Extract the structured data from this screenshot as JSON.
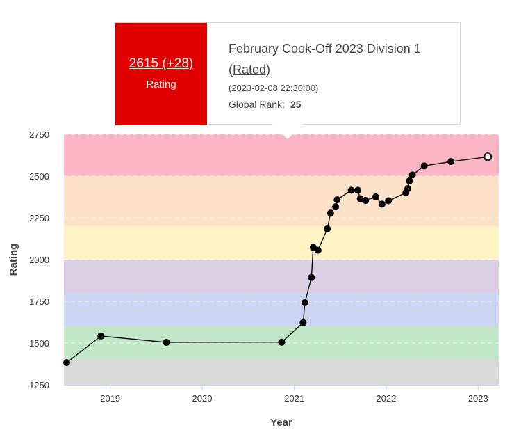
{
  "tooltip": {
    "rating_value": "2615 (+28)",
    "rating_label": "Rating",
    "contest_name": "February Cook-Off 2023 Division 1 (Rated)",
    "contest_date": "(2023-02-08 22:30:00)",
    "rank_label": "Global Rank:",
    "rank_value": "25"
  },
  "chart_data": {
    "type": "line",
    "xlabel": "Year",
    "ylabel": "Rating",
    "ylim": [
      1250,
      2750
    ],
    "xlim": [
      "2018-07-01",
      "2023-03-24"
    ],
    "yticks": [
      1250,
      1500,
      1750,
      2000,
      2250,
      2500,
      2750
    ],
    "xticks": [
      "2019-01-01",
      "2020-01-01",
      "2021-01-01",
      "2022-01-01",
      "2023-01-01"
    ],
    "xtick_labels": [
      "2019",
      "2020",
      "2021",
      "2022",
      "2023"
    ],
    "grid": true,
    "bands": [
      {
        "from": 1250,
        "to": 1400,
        "color": "#d9d9d9"
      },
      {
        "from": 1400,
        "to": 1600,
        "color": "#c2e6c8"
      },
      {
        "from": 1600,
        "to": 1800,
        "color": "#ccd5f2"
      },
      {
        "from": 1800,
        "to": 2000,
        "color": "#dccfe3"
      },
      {
        "from": 2000,
        "to": 2200,
        "color": "#fff3c4"
      },
      {
        "from": 2200,
        "to": 2500,
        "color": "#fde1c8"
      },
      {
        "from": 2500,
        "to": 2750,
        "color": "#fbb6c6"
      }
    ],
    "series": [
      {
        "color": "#000000",
        "points": [
          {
            "x": "2018-07-12",
            "y": 1383
          },
          {
            "x": "2018-11-25",
            "y": 1542
          },
          {
            "x": "2019-08-12",
            "y": 1504
          },
          {
            "x": "2020-11-12",
            "y": 1505
          },
          {
            "x": "2021-02-05",
            "y": 1622
          },
          {
            "x": "2021-02-12",
            "y": 1742
          },
          {
            "x": "2021-03-10",
            "y": 1893
          },
          {
            "x": "2021-03-17",
            "y": 2073
          },
          {
            "x": "2021-04-05",
            "y": 2056
          },
          {
            "x": "2021-05-12",
            "y": 2184
          },
          {
            "x": "2021-05-25",
            "y": 2278
          },
          {
            "x": "2021-06-14",
            "y": 2316
          },
          {
            "x": "2021-06-20",
            "y": 2358
          },
          {
            "x": "2021-08-15",
            "y": 2415
          },
          {
            "x": "2021-09-10",
            "y": 2415
          },
          {
            "x": "2021-09-20",
            "y": 2364
          },
          {
            "x": "2021-10-11",
            "y": 2354
          },
          {
            "x": "2021-11-20",
            "y": 2375
          },
          {
            "x": "2021-12-15",
            "y": 2332
          },
          {
            "x": "2022-01-10",
            "y": 2352
          },
          {
            "x": "2022-03-20",
            "y": 2400
          },
          {
            "x": "2022-03-28",
            "y": 2425
          },
          {
            "x": "2022-04-03",
            "y": 2471
          },
          {
            "x": "2022-04-15",
            "y": 2507
          },
          {
            "x": "2022-06-01",
            "y": 2561
          },
          {
            "x": "2022-09-15",
            "y": 2587
          },
          {
            "x": "2023-02-08",
            "y": 2615
          }
        ],
        "highlight_last": true
      }
    ]
  }
}
